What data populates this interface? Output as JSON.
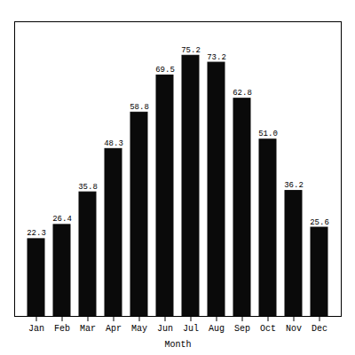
{
  "chart_data": {
    "type": "bar",
    "xlabel": "Month",
    "categories": [
      "Jan",
      "Feb",
      "Mar",
      "Apr",
      "May",
      "Jun",
      "Jul",
      "Aug",
      "Sep",
      "Oct",
      "Nov",
      "Dec"
    ],
    "values": [
      22.3,
      26.4,
      35.8,
      48.3,
      58.8,
      69.5,
      75.2,
      73.2,
      62.8,
      51.0,
      36.2,
      25.6
    ],
    "value_labels": [
      "22.3",
      "26.4",
      "35.8",
      "48.3",
      "58.8",
      "69.5",
      "75.2",
      "73.2",
      "62.8",
      "51.0",
      "36.2",
      "25.6"
    ],
    "color": "#0a0a0a",
    "ylim": [
      0,
      85
    ],
    "data_labels": true,
    "tick_labels": "x"
  }
}
